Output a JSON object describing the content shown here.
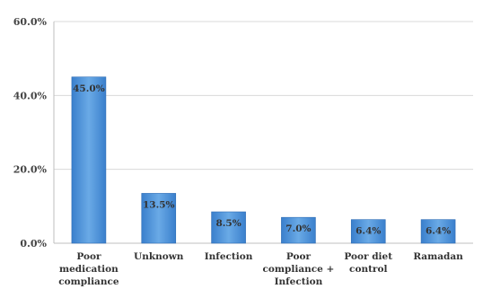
{
  "chart_data": {
    "type": "bar",
    "categories": [
      [
        "Poor",
        "medication",
        "compliance"
      ],
      [
        "Unknown"
      ],
      [
        "Infection"
      ],
      [
        "Poor",
        "compliance +",
        "Infection"
      ],
      [
        "Poor diet",
        "control"
      ],
      [
        "Ramadan"
      ]
    ],
    "values": [
      45.0,
      13.5,
      8.5,
      7.0,
      6.4,
      6.4
    ],
    "data_labels": [
      "45.0%",
      "13.5%",
      "8.5%",
      "7.0%",
      "6.4%",
      "6.4%"
    ],
    "y_ticks": [
      0,
      20,
      40,
      60
    ],
    "y_tick_labels": [
      "0.0%",
      "20.0%",
      "40.0%",
      "60.0%"
    ],
    "ylim": [
      0,
      60
    ],
    "title": "",
    "xlabel": "",
    "ylabel": "",
    "grid": true,
    "legend": "none",
    "colors": {
      "bar_light": "#6aaae6",
      "bar_dark": "#3a7fcc",
      "bar_edge": "#2f6db5",
      "grid": "#d9d9d9",
      "axis": "#bfbfbf"
    }
  }
}
